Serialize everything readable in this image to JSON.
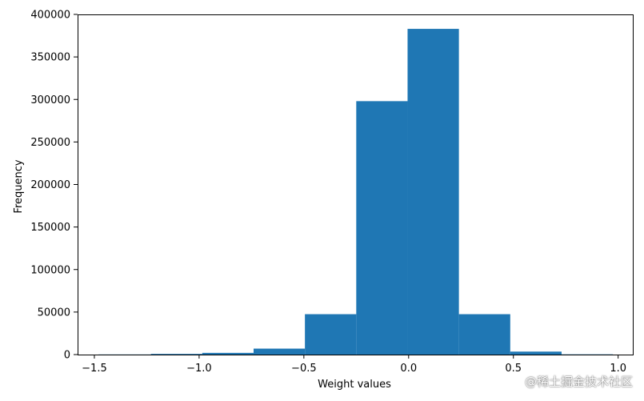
{
  "chart_data": {
    "type": "bar",
    "title": "",
    "xlabel": "Weight values",
    "ylabel": "Frequency",
    "bins": [
      {
        "start": -1.48,
        "end": -1.23,
        "value": 150
      },
      {
        "start": -1.23,
        "end": -0.985,
        "value": 800
      },
      {
        "start": -0.985,
        "end": -0.74,
        "value": 2000
      },
      {
        "start": -0.74,
        "end": -0.495,
        "value": 7000
      },
      {
        "start": -0.495,
        "end": -0.25,
        "value": 47500
      },
      {
        "start": -0.25,
        "end": -0.005,
        "value": 298000
      },
      {
        "start": -0.005,
        "end": 0.24,
        "value": 383000
      },
      {
        "start": 0.24,
        "end": 0.485,
        "value": 47500
      },
      {
        "start": 0.485,
        "end": 0.73,
        "value": 3500
      },
      {
        "start": 0.73,
        "end": 0.975,
        "value": 300
      }
    ],
    "xlim": [
      -1.58,
      1.07
    ],
    "ylim": [
      0,
      400000
    ],
    "xticks": [
      -1.5,
      -1.0,
      -0.5,
      0.0,
      0.5,
      1.0
    ],
    "xtick_labels": [
      "−1.5",
      "−1.0",
      "−0.5",
      "0.0",
      "0.5",
      "1.0"
    ],
    "yticks": [
      0,
      50000,
      100000,
      150000,
      200000,
      250000,
      300000,
      350000,
      400000
    ],
    "ytick_labels": [
      "0",
      "50000",
      "100000",
      "150000",
      "200000",
      "250000",
      "300000",
      "350000",
      "400000"
    ],
    "bar_color": "#1f77b4",
    "grid": false,
    "legend": "none"
  },
  "watermark": "@稀土掘金技术社区"
}
